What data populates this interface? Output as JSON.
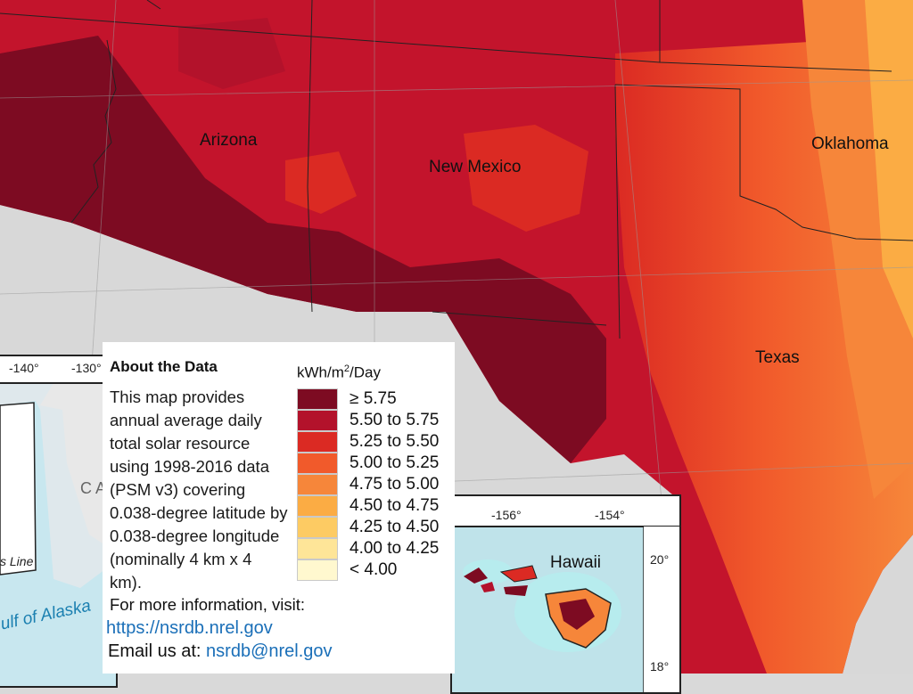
{
  "states": {
    "arizona": "Arizona",
    "new_mexico": "New Mexico",
    "oklahoma": "Oklahoma",
    "texas": "Texas"
  },
  "alaska_inset": {
    "lon_ticks": [
      "-140°",
      "-130°"
    ],
    "canada_fragment": "CA",
    "line_fragment": "s Line",
    "gulf_label": "ulf of Alaska"
  },
  "hawaii_inset": {
    "title": "Hawaii",
    "lon_ticks": [
      "-156°",
      "-154°"
    ],
    "lat_ticks": [
      "20°",
      "18°"
    ]
  },
  "about": {
    "title": "About the Data",
    "body": "This map provides annual average daily total solar resource using 1998-2016 data (PSM v3) covering 0.038-degree latitude by 0.038-degree longitude (nominally 4 km x 4 km).",
    "more_info": "For more information, visit:",
    "url": "https://nsrdb.nrel.gov",
    "email_prefix": "Email us at:",
    "email": "nsrdb@nrel.gov"
  },
  "legend": {
    "unit_main": "kWh/m",
    "unit_sup": "2",
    "unit_tail": "/Day",
    "items": [
      {
        "label": "≥ 5.75",
        "color": "#7d0b22"
      },
      {
        "label": "5.50 to 5.75",
        "color": "#b3122b"
      },
      {
        "label": "5.25 to 5.50",
        "color": "#db2a23"
      },
      {
        "label": "5.00 to 5.25",
        "color": "#f15a2b"
      },
      {
        "label": "4.75 to 5.00",
        "color": "#f6863a"
      },
      {
        "label": "4.50 to 4.75",
        "color": "#fbac44"
      },
      {
        "label": "4.25 to 4.50",
        "color": "#fdcb63"
      },
      {
        "label": "4.00 to 4.25",
        "color": "#fee598"
      },
      {
        "label": "< 4.00",
        "color": "#fff8cf"
      }
    ]
  }
}
